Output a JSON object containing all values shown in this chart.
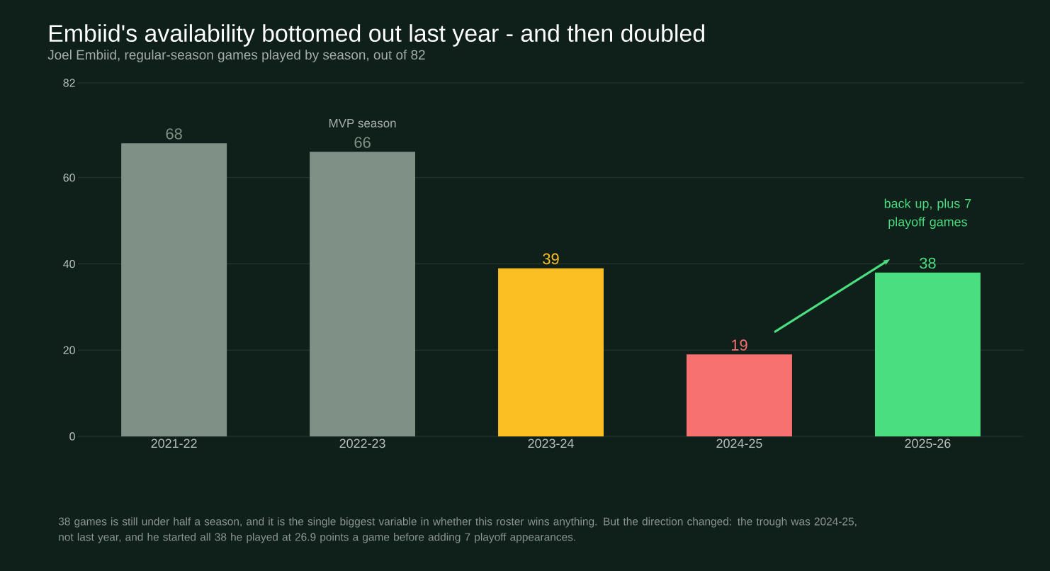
{
  "chart_data": {
    "type": "bar",
    "title": "Embiid's availability bottomed out last year - and then doubled",
    "subtitle": "Joel Embiid, regular-season games played by season, out of 82",
    "categories": [
      "2021-22",
      "2022-23",
      "2023-24",
      "2024-25",
      "2025-26"
    ],
    "values": [
      68,
      66,
      39,
      19,
      38
    ],
    "colors": [
      "#7f9187",
      "#7f9187",
      "#fbbf24",
      "#f87171",
      "#4ade80"
    ],
    "ylim": [
      0,
      82
    ],
    "yticks": [
      0,
      20,
      40,
      60,
      82
    ],
    "grid": "y",
    "data_labels": true,
    "annotations": [
      {
        "text": "MVP season",
        "x": "2022-23",
        "y": 66
      },
      "back up, plus 7 playoff games",
      "38 games is still under half a season, and it is the single biggest variable in whether this roster wins anything. But the direction changed: the trough was 2024-25, not last year, and he started all 38 he played at 26.9 points a game before adding 7 playoff appearances."
    ]
  }
}
